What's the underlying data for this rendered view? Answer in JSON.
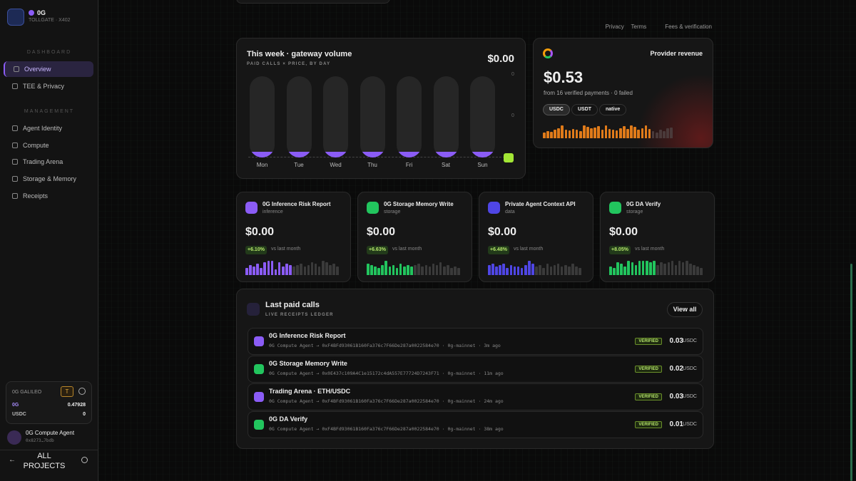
{
  "sidebar": {
    "brand": "0G",
    "subbrand": "TOLLGATE · X402",
    "sections": [
      {
        "title": "DASHBOARD",
        "items": [
          "Overview",
          "TEE & Privacy"
        ]
      },
      {
        "title": "MANAGEMENT",
        "items": [
          "Agent Identity",
          "Compute",
          "Trading Arena",
          "Storage & Memory",
          "Receipts"
        ]
      }
    ],
    "wallet": {
      "network": "0G GALILEO",
      "badge": "T",
      "rows": [
        {
          "label": "0G",
          "value": "0.47928"
        },
        {
          "label": "USDC",
          "value": "0"
        }
      ]
    },
    "agent": {
      "name": "0G Compute Agent",
      "address": "0x8273…7bdb"
    },
    "footer": "ALL PROJECTS"
  },
  "top_links": [
    "Privacy",
    "Terms",
    "Fees & verification"
  ],
  "weekly": {
    "title": "This week · gateway volume",
    "subtitle": "PAID CALLS × PRICE, BY DAY",
    "total": "$0.00",
    "axis_labels": [
      "0",
      "0"
    ],
    "days": [
      "Mon",
      "Tue",
      "Wed",
      "Thu",
      "Fri",
      "Sat",
      "Sun"
    ]
  },
  "revenue": {
    "title": "Provider revenue",
    "amount": "$0.53",
    "note": "from 16 verified payments · 0 failed",
    "chips": [
      "USDC",
      "USDT",
      "native"
    ],
    "spark": {
      "color": "#e07b1a",
      "values": [
        8,
        10,
        9,
        12,
        14,
        18,
        12,
        11,
        13,
        12,
        10,
        18,
        16,
        14,
        15,
        17,
        12,
        18,
        13,
        12,
        11,
        14,
        17,
        13,
        18,
        16,
        12,
        14,
        18,
        13
      ]
    },
    "spark_muted": {
      "color": "#4a3a3a",
      "values": [
        10,
        8,
        12,
        10,
        14,
        15
      ]
    }
  },
  "cards": [
    {
      "title": "0G Inference Risk Report",
      "category": "inference",
      "amount": "$0.00",
      "change": "+6.10%",
      "compare": "vs last month",
      "color": "#8b5cf6",
      "spark": {
        "color": "#8b5cf6",
        "values": [
          10,
          14,
          12,
          16,
          10,
          18,
          20,
          20,
          8,
          18,
          12,
          16,
          14
        ]
      },
      "spark_muted": {
        "color": "#3a3a3a",
        "values": [
          12,
          14,
          16,
          12,
          14,
          18,
          16,
          12,
          20,
          18,
          14,
          16,
          12
        ]
      }
    },
    {
      "title": "0G Storage Memory Write",
      "category": "storage",
      "amount": "$0.00",
      "change": "+6.63%",
      "compare": "vs last month",
      "color": "#22c55e",
      "spark": {
        "color": "#22c55e",
        "values": [
          16,
          14,
          12,
          10,
          14,
          20,
          12,
          14,
          10,
          16,
          12,
          14,
          12
        ]
      },
      "spark_muted": {
        "color": "#3a3a3a",
        "values": [
          14,
          16,
          12,
          14,
          12,
          16,
          14,
          18,
          12,
          14,
          10,
          12,
          10
        ]
      }
    },
    {
      "title": "Private Agent Context API",
      "category": "data",
      "amount": "$0.00",
      "change": "+6.48%",
      "compare": "vs last month",
      "color": "#4f46e5",
      "spark": {
        "color": "#4f46e5",
        "values": [
          14,
          16,
          12,
          14,
          16,
          10,
          14,
          12,
          12,
          10,
          14,
          20,
          16
        ]
      },
      "spark_muted": {
        "color": "#3a3a3a",
        "values": [
          12,
          14,
          10,
          16,
          12,
          14,
          16,
          12,
          14,
          12,
          16,
          12,
          10
        ]
      }
    },
    {
      "title": "0G DA Verify",
      "category": "storage",
      "amount": "$0.00",
      "change": "+8.05%",
      "compare": "vs last month",
      "color": "#22c55e",
      "spark": {
        "color": "#22c55e",
        "values": [
          12,
          10,
          18,
          16,
          12,
          20,
          18,
          14,
          20,
          20,
          20,
          18,
          20
        ]
      },
      "spark_muted": {
        "color": "#3a3a3a",
        "values": [
          14,
          18,
          16,
          18,
          20,
          14,
          20,
          18,
          20,
          16,
          14,
          12,
          10
        ]
      }
    }
  ],
  "ledger": {
    "title": "Last paid calls",
    "subtitle": "LIVE RECEIPTS LEDGER",
    "action": "View all",
    "rows": [
      {
        "title": "0G Inference Risk Report",
        "meta": "0G Compute Agent → 0xF4BFd93061B160Fa376c7F66De287a0022584e70 · 0g-mainnet · 3m ago",
        "status": "VERIFIED",
        "amount": "0.03",
        "unit": "USDC",
        "color": "#8b5cf6"
      },
      {
        "title": "0G Storage Memory Write",
        "meta": "0G Compute Agent → 0x0E437c109A4C1e15172c4dA557E77724D7243F71 · 0g-mainnet · 11m ago",
        "status": "VERIFIED",
        "amount": "0.02",
        "unit": "USDC",
        "color": "#22c55e"
      },
      {
        "title": "Trading Arena · ETH/USDC",
        "meta": "0G Compute Agent → 0xF4BFd93061B160Fa376c7F66De287a0022584e70 · 0g-mainnet · 24m ago",
        "status": "VERIFIED",
        "amount": "0.03",
        "unit": "USDC",
        "color": "#8b5cf6"
      },
      {
        "title": "0G DA Verify",
        "meta": "0G Compute Agent → 0xF4BFd93061B160Fa376c7F66De287a0022584e70 · 0g-mainnet · 38m ago",
        "status": "VERIFIED",
        "amount": "0.01",
        "unit": "USDC",
        "color": "#22c55e"
      }
    ]
  }
}
